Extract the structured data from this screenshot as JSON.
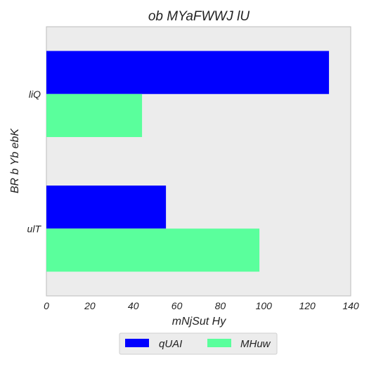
{
  "chart_data": {
    "type": "bar",
    "orientation": "horizontal",
    "title": "ob MYaFWWJ  lU",
    "xlabel": "mNjSut Hy",
    "ylabel": "BR b Yb ebK",
    "categories": [
      "liQ",
      "ulT"
    ],
    "series": [
      {
        "name": "qUAI",
        "color": "#0000ff",
        "values": [
          130,
          55
        ]
      },
      {
        "name": "MHuw",
        "color": "#5aff9c",
        "values": [
          44,
          98
        ]
      }
    ],
    "xlim": [
      0,
      140
    ],
    "xticks": [
      "0",
      "20",
      "40",
      "60",
      "80",
      "100",
      "120",
      "140"
    ],
    "grid": false,
    "legend": "bottom-center",
    "background": "#ececec"
  }
}
